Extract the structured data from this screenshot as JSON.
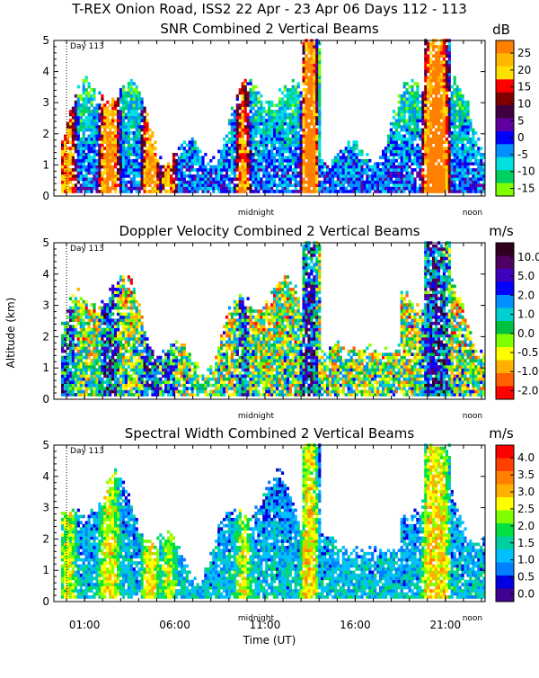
{
  "header": {
    "title": "T-REX Onion Road, ISS2  22 Apr - 23 Apr 06 Days 112 - 113"
  },
  "y_axis_label": "Altitude (km)",
  "x_axis_label": "Time (UT)",
  "x_ticks": [
    "01:00",
    "06:00",
    "11:00",
    "16:00",
    "21:00"
  ],
  "x_tick_hours": [
    1,
    6,
    11,
    16,
    21
  ],
  "day_marker": {
    "label": "Day 113",
    "hour": 0
  },
  "markers": [
    {
      "label": "midnight",
      "hour": 10.5
    },
    {
      "label": "noon",
      "hour": 22.5
    }
  ],
  "chart_data": [
    {
      "type": "heatmap",
      "title": "SNR Combined 2 Vertical Beams",
      "unit": "dB",
      "xlim_hours": [
        -0.7,
        23.2
      ],
      "ylim": [
        0,
        5
      ],
      "y_ticks": [
        0,
        1,
        2,
        3,
        4,
        5
      ],
      "colorbar": {
        "labels": [
          "25",
          "20",
          "15",
          "10",
          "5",
          "0",
          "-5",
          "-10",
          "-15"
        ],
        "colors": [
          "#ff8000",
          "#ffb800",
          "#ffe000",
          "#ff0000",
          "#800000",
          "#400040",
          "#6000a0",
          "#0000ff",
          "#0090ff",
          "#00e0e0",
          "#00d060",
          "#80ff00"
        ]
      }
    },
    {
      "type": "heatmap",
      "title": "Doppler Velocity Combined 2 Vertical Beams",
      "unit": "m/s",
      "xlim_hours": [
        -0.7,
        23.2
      ],
      "ylim": [
        0,
        5
      ],
      "y_ticks": [
        0,
        1,
        2,
        3,
        4,
        5
      ],
      "colorbar": {
        "labels": [
          "10.0",
          "5.0",
          "2.0",
          "1.0",
          "0.0",
          "-0.5",
          "-1.0",
          "-2.0"
        ],
        "colors": [
          "#300020",
          "#500060",
          "#4000c0",
          "#0000ff",
          "#0090ff",
          "#00d0d0",
          "#00c040",
          "#80ff00",
          "#ffff00",
          "#ffb000",
          "#ff6000",
          "#ff0000"
        ]
      }
    },
    {
      "type": "heatmap",
      "title": "Spectral Width Combined 2 Vertical Beams",
      "unit": "m/s",
      "xlim_hours": [
        -0.7,
        23.2
      ],
      "ylim": [
        0,
        5
      ],
      "y_ticks": [
        0,
        1,
        2,
        3,
        4,
        5
      ],
      "colorbar": {
        "labels": [
          "4.0",
          "3.5",
          "3.0",
          "2.5",
          "2.0",
          "1.5",
          "1.0",
          "0.5",
          "0.0"
        ],
        "colors": [
          "#ff0000",
          "#ff4000",
          "#ff8000",
          "#ffb000",
          "#ffff00",
          "#80ff00",
          "#00e040",
          "#00d0a0",
          "#00c0ff",
          "#0080ff",
          "#0000e0",
          "#400090"
        ]
      }
    }
  ]
}
